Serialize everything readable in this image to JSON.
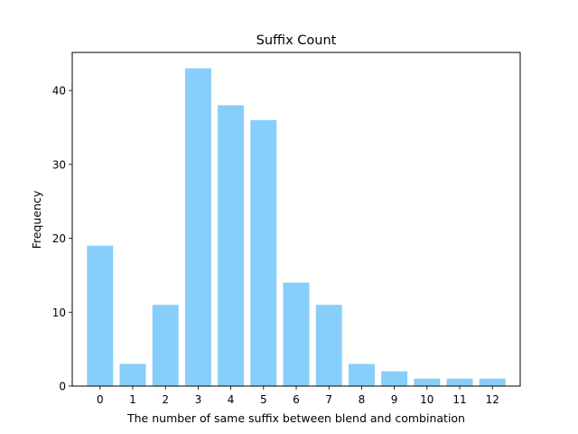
{
  "chart_data": {
    "type": "bar",
    "title": "Suffix Count",
    "xlabel": "The number of same suffix between blend and combination",
    "ylabel": "Frequency",
    "categories": [
      "0",
      "1",
      "2",
      "3",
      "4",
      "5",
      "6",
      "7",
      "8",
      "9",
      "10",
      "11",
      "12"
    ],
    "values": [
      19,
      3,
      11,
      43,
      38,
      36,
      14,
      11,
      3,
      2,
      1,
      1,
      1
    ],
    "ylim": [
      0,
      45.15
    ],
    "yticks": [
      0,
      10,
      20,
      30,
      40
    ],
    "bar_color": "#87cefa",
    "grid": false,
    "legend": "none"
  }
}
